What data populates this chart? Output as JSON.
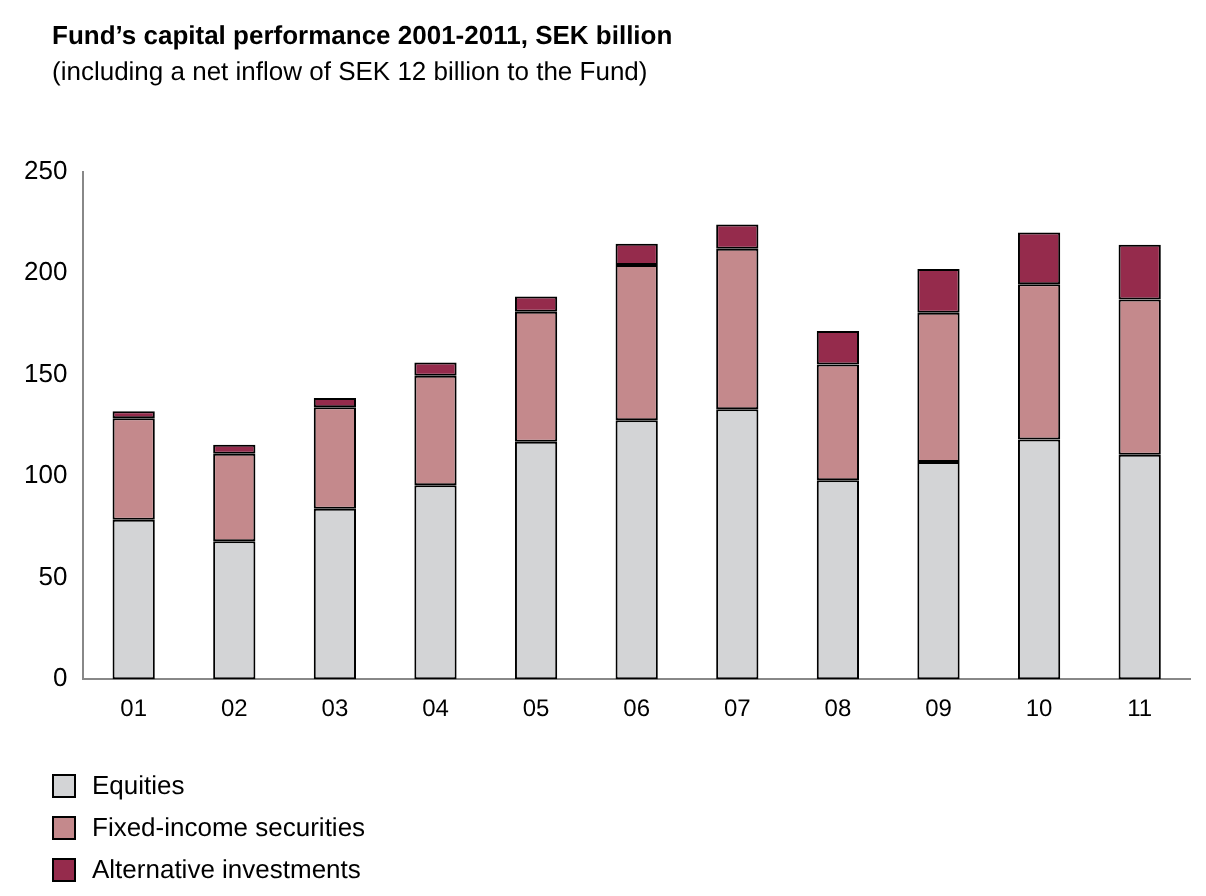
{
  "chart_data": {
    "type": "bar",
    "title": "Fund’s capital performance 2001-2011, SEK billion",
    "subtitle": "(including a net inflow of SEK 12 billion to the Fund)",
    "categories": [
      "01",
      "02",
      "03",
      "04",
      "05",
      "06",
      "07",
      "08",
      "09",
      "10",
      "11"
    ],
    "stacked": true,
    "series": [
      {
        "name": "Equities",
        "color": "#d3d4d6",
        "values": [
          78.5,
          68,
          84,
          95.5,
          117,
          127.5,
          133,
          98,
          107,
          118,
          110.5
        ]
      },
      {
        "name": "Fixed-income securities",
        "color": "#c4898c",
        "values": [
          50,
          43,
          50,
          54,
          64,
          76.5,
          79,
          57,
          73.5,
          76.5,
          76.5
        ]
      },
      {
        "name": "Alternative investments",
        "color": "#952b4c",
        "values": [
          3.5,
          4.5,
          4.5,
          6.5,
          7.5,
          10.5,
          12,
          16.5,
          21.5,
          25.5,
          27
        ]
      }
    ],
    "ylim": [
      0,
      250
    ],
    "yticks": [
      0,
      50,
      100,
      150,
      200,
      250
    ],
    "grid": false,
    "legend": "bottom left"
  }
}
